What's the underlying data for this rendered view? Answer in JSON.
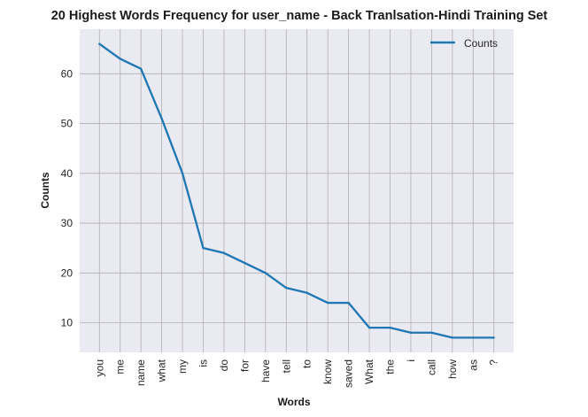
{
  "chart_data": {
    "type": "line",
    "title": "20 Highest Words Frequency for user_name - Back Tranlsation-Hindi Training Set",
    "xlabel": "Words",
    "ylabel": "Counts",
    "categories": [
      "you",
      "me",
      "name",
      "what",
      "my",
      "is",
      "do",
      "for",
      "have",
      "tell",
      "to",
      "know",
      "saved",
      "What",
      "the",
      "i",
      "call",
      "how",
      "as",
      "?"
    ],
    "series": [
      {
        "name": "Counts",
        "values": [
          66,
          63,
          61,
          51,
          40,
          25,
          24,
          22,
          20,
          17,
          16,
          14,
          14,
          9,
          9,
          8,
          8,
          7,
          7,
          7
        ],
        "color": "#1f77b4"
      }
    ],
    "yticks": [
      10,
      20,
      30,
      40,
      50,
      60
    ],
    "ylim": [
      4.05,
      68.95
    ],
    "grid": true,
    "legend_position": "top-right",
    "background": "#eaeaf2",
    "grid_color": "#b0b0b0"
  }
}
